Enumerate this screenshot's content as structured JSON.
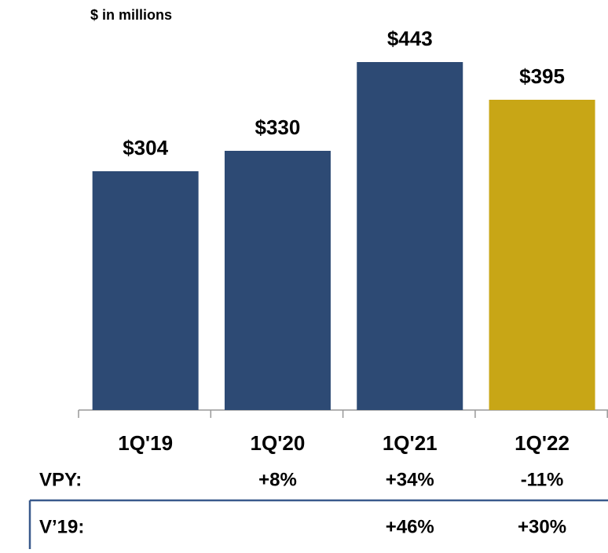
{
  "chart_data": {
    "type": "bar",
    "subtitle": "$ in millions",
    "categories": [
      "1Q'19",
      "1Q'20",
      "1Q'21",
      "1Q'22"
    ],
    "values": [
      304,
      330,
      443,
      395
    ],
    "value_labels": [
      "$304",
      "$330",
      "$443",
      "$395"
    ],
    "colors": [
      "#2d4a74",
      "#2d4a74",
      "#2d4a74",
      "#c8a616"
    ],
    "rows": [
      {
        "name": "VPY:",
        "cells": [
          null,
          "+8%",
          "+34%",
          "-11%"
        ]
      },
      {
        "name": "V’19:",
        "cells": [
          null,
          null,
          "+46%",
          "+30%"
        ]
      }
    ]
  }
}
